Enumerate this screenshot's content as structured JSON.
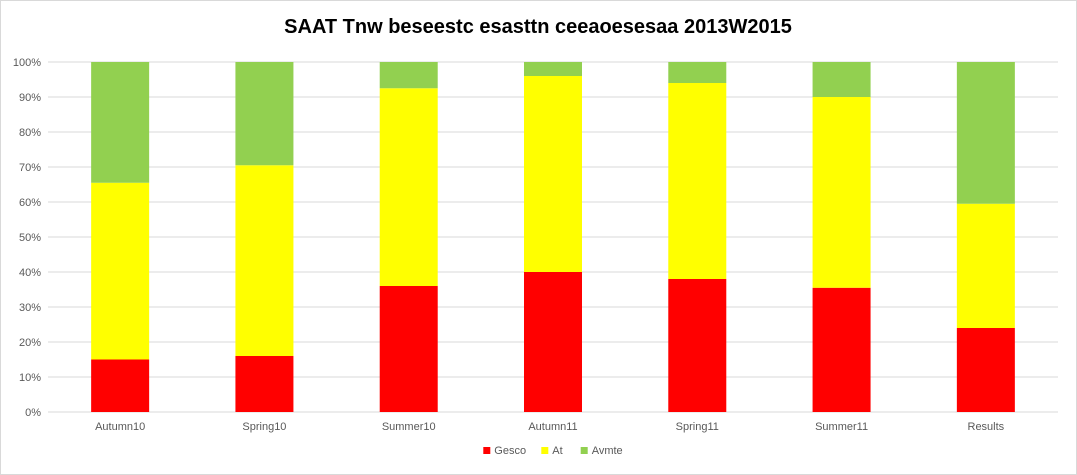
{
  "chart_data": {
    "type": "bar",
    "stacked": true,
    "percent_stacked": true,
    "title": "SAAT Tnw beseestc esasttn ceeaoesesaa 2013W2015",
    "xlabel": "",
    "ylabel": "",
    "ylim": [
      0,
      100
    ],
    "y_ticks": [
      "0%",
      "10%",
      "20%",
      "30%",
      "40%",
      "50%",
      "60%",
      "70%",
      "80%",
      "90%",
      "100%"
    ],
    "grid": true,
    "legend_position": "bottom",
    "categories": [
      "Autumn10",
      "Spring10",
      "Summer10",
      "Autumn11",
      "Spring11",
      "Summer11",
      "Results"
    ],
    "series": [
      {
        "name": "Gesco",
        "color": "#ff0000",
        "values": [
          15,
          16,
          36,
          40,
          38,
          35.5,
          24
        ]
      },
      {
        "name": "At",
        "color": "#ffff00",
        "values": [
          50.5,
          54.5,
          56.5,
          56,
          56,
          54.5,
          35.5
        ]
      },
      {
        "name": "Avmte",
        "color": "#92d050",
        "values": [
          34.5,
          29.5,
          7.5,
          4,
          6,
          10,
          40.5
        ]
      }
    ]
  }
}
